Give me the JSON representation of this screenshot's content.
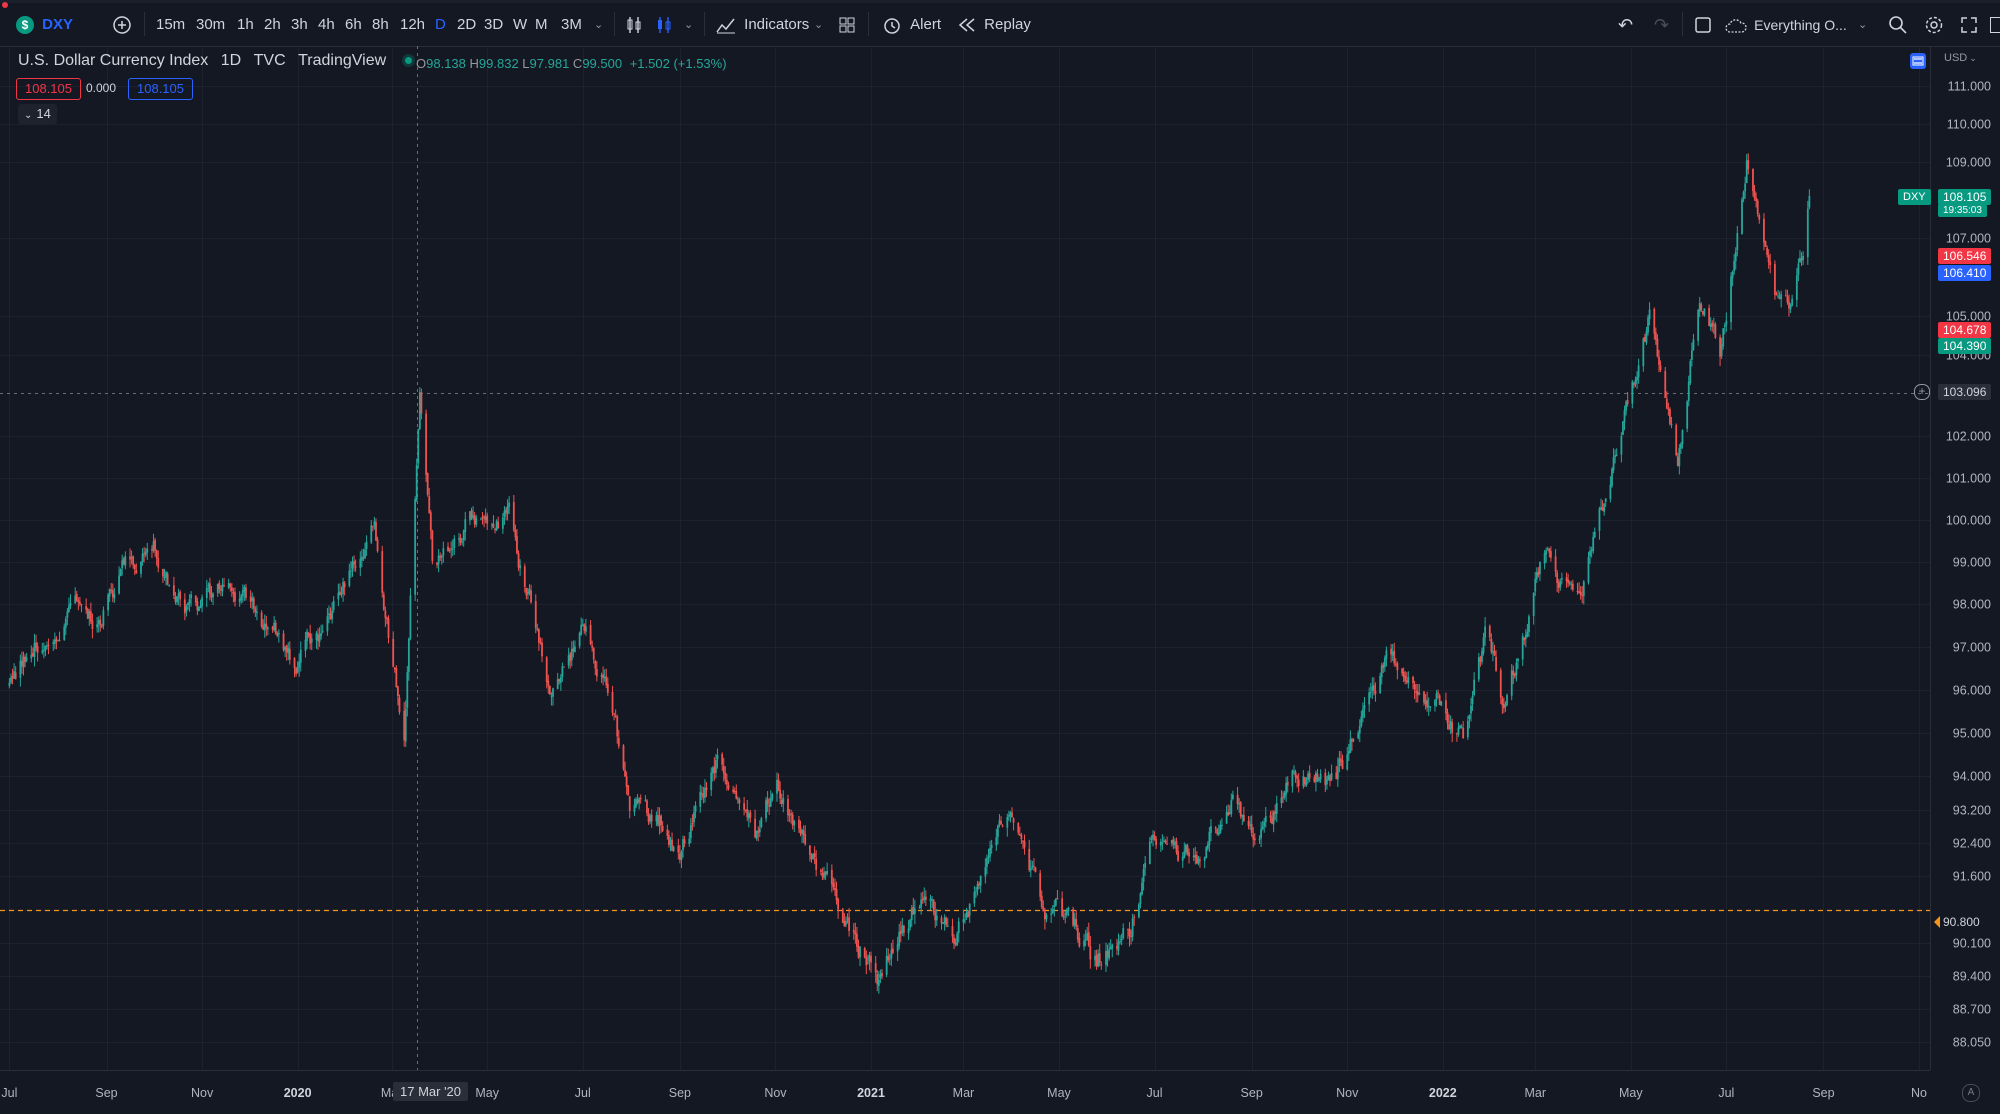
{
  "toolbar": {
    "symbol": "DXY",
    "intervals": [
      "15m",
      "30m",
      "1h",
      "2h",
      "3h",
      "4h",
      "6h",
      "8h",
      "12h",
      "D",
      "2D",
      "3D",
      "W",
      "M",
      "3M"
    ],
    "active_interval": "D",
    "indicators_label": "Indicators",
    "alert_label": "Alert",
    "replay_label": "Replay",
    "layout_name": "Everything O..."
  },
  "legend": {
    "title": "U.S. Dollar Currency Index",
    "interval": "1D",
    "exchange": "TVC",
    "source": "TradingView",
    "open_key": "O",
    "open": "98.138",
    "high_key": "H",
    "high": "99.832",
    "low_key": "L",
    "low": "97.981",
    "close_key": "C",
    "close": "99.500",
    "change": "+1.502 (+1.53%)",
    "bid": "108.105",
    "spread": "0.000",
    "ask": "108.105",
    "rsi_length": "14"
  },
  "price_scale": {
    "currency": "USD",
    "ticks": [
      "111.000",
      "110.000",
      "109.000",
      "107.000",
      "105.000",
      "104.000",
      "102.000",
      "101.000",
      "100.000",
      "99.000",
      "98.000",
      "97.000",
      "96.000",
      "95.000",
      "94.000",
      "93.200",
      "92.400",
      "91.600",
      "90.800",
      "90.100",
      "89.400",
      "88.700",
      "88.050"
    ],
    "last_symbol": "DXY",
    "last_price": "108.105",
    "countdown": "19:35:03",
    "crosshair_price": "103.096",
    "hline_price": "90.800",
    "markers": [
      {
        "value": "106.546",
        "color": "#f23645"
      },
      {
        "value": "106.410",
        "color": "#2962ff"
      },
      {
        "value": "104.678",
        "color": "#f23645"
      },
      {
        "value": "104.390",
        "color": "#089981"
      }
    ]
  },
  "time_scale": {
    "crosshair_label": "17 Mar '20"
  },
  "chart_data": {
    "type": "candlestick",
    "symbol": "DXY",
    "title": "U.S. Dollar Currency Index",
    "interval": "1D",
    "x_labels": [
      "Jul",
      "Sep",
      "Nov",
      "2020",
      "Mar",
      "May",
      "Jul",
      "Sep",
      "Nov",
      "2021",
      "Mar",
      "May",
      "Jul",
      "Sep",
      "Nov",
      "2022",
      "Mar",
      "May",
      "Jul",
      "Sep",
      "No"
    ],
    "path_points": [
      {
        "x": "2019-07-01",
        "y": 96.1
      },
      {
        "x": "2019-07-20",
        "y": 97.3
      },
      {
        "x": "2019-08-10",
        "y": 98.2
      },
      {
        "x": "2019-08-25",
        "y": 97.7
      },
      {
        "x": "2019-09-10",
        "y": 98.7
      },
      {
        "x": "2019-10-01",
        "y": 99.3
      },
      {
        "x": "2019-10-20",
        "y": 97.6
      },
      {
        "x": "2019-11-10",
        "y": 98.2
      },
      {
        "x": "2019-12-01",
        "y": 98.0
      },
      {
        "x": "2019-12-31",
        "y": 96.6
      },
      {
        "x": "2020-01-20",
        "y": 97.6
      },
      {
        "x": "2020-02-19",
        "y": 99.8
      },
      {
        "x": "2020-03-09",
        "y": 94.9
      },
      {
        "x": "2020-03-19",
        "y": 102.9
      },
      {
        "x": "2020-03-27",
        "y": 98.8
      },
      {
        "x": "2020-04-20",
        "y": 100.1
      },
      {
        "x": "2020-05-15",
        "y": 100.0
      },
      {
        "x": "2020-06-10",
        "y": 96.2
      },
      {
        "x": "2020-06-30",
        "y": 97.2
      },
      {
        "x": "2020-07-15",
        "y": 96.3
      },
      {
        "x": "2020-07-31",
        "y": 93.2
      },
      {
        "x": "2020-08-20",
        "y": 92.9
      },
      {
        "x": "2020-09-01",
        "y": 92.0
      },
      {
        "x": "2020-09-25",
        "y": 94.5
      },
      {
        "x": "2020-10-20",
        "y": 92.6
      },
      {
        "x": "2020-11-01",
        "y": 94.1
      },
      {
        "x": "2020-12-01",
        "y": 91.4
      },
      {
        "x": "2021-01-06",
        "y": 89.4
      },
      {
        "x": "2021-02-01",
        "y": 91.0
      },
      {
        "x": "2021-02-25",
        "y": 90.3
      },
      {
        "x": "2021-03-31",
        "y": 93.3
      },
      {
        "x": "2021-04-20",
        "y": 91.0
      },
      {
        "x": "2021-05-25",
        "y": 89.7
      },
      {
        "x": "2021-06-15",
        "y": 90.3
      },
      {
        "x": "2021-07-01",
        "y": 92.4
      },
      {
        "x": "2021-07-30",
        "y": 92.1
      },
      {
        "x": "2021-08-20",
        "y": 93.5
      },
      {
        "x": "2021-09-05",
        "y": 92.3
      },
      {
        "x": "2021-09-30",
        "y": 94.2
      },
      {
        "x": "2021-10-25",
        "y": 93.8
      },
      {
        "x": "2021-11-24",
        "y": 96.8
      },
      {
        "x": "2021-12-31",
        "y": 95.7
      },
      {
        "x": "2022-01-14",
        "y": 94.7
      },
      {
        "x": "2022-01-28",
        "y": 97.2
      },
      {
        "x": "2022-02-10",
        "y": 95.5
      },
      {
        "x": "2022-03-07",
        "y": 99.1
      },
      {
        "x": "2022-03-30",
        "y": 97.9
      },
      {
        "x": "2022-05-01",
        "y": 103.0
      },
      {
        "x": "2022-05-13",
        "y": 105.0
      },
      {
        "x": "2022-05-31",
        "y": 101.3
      },
      {
        "x": "2022-06-14",
        "y": 105.5
      },
      {
        "x": "2022-06-27",
        "y": 103.9
      },
      {
        "x": "2022-07-14",
        "y": 109.2
      },
      {
        "x": "2022-08-01",
        "y": 105.2
      },
      {
        "x": "2022-08-10",
        "y": 105.5
      },
      {
        "x": "2022-08-18",
        "y": 106.4
      },
      {
        "x": "2022-08-23",
        "y": 108.105
      }
    ],
    "crosshair": {
      "x": "2020-03-17",
      "y": 103.096
    },
    "horizontal_line": 90.8,
    "last_price": 108.105,
    "ylim": [
      87.8,
      111.4
    ],
    "grid": true
  },
  "colors": {
    "background": "#141823",
    "grid": "#1e2230",
    "up": "#26a69a",
    "down": "#ef5350",
    "accent": "#2962ff",
    "hline": "#f7931a"
  }
}
